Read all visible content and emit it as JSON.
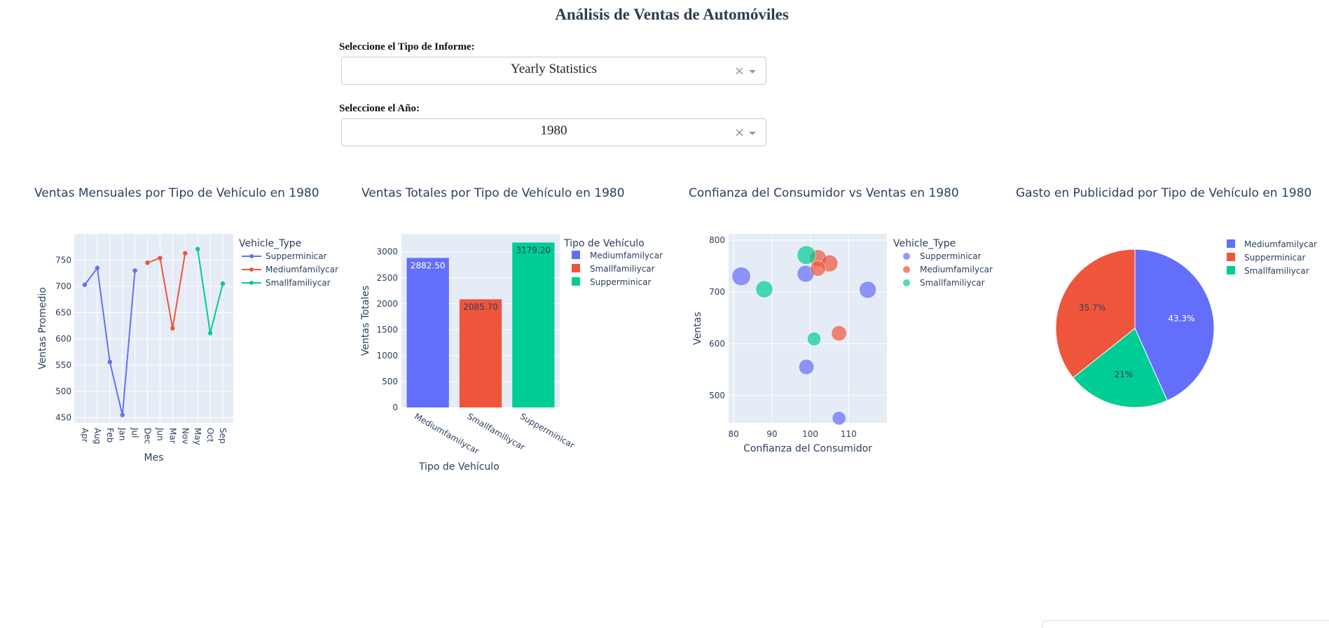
{
  "header": {
    "title": "Análisis de Ventas de Automóviles"
  },
  "controls": {
    "report_label": "Seleccione el Tipo de Informe:",
    "report_value": "Yearly Statistics",
    "year_label": "Seleccione el Año:",
    "year_value": "1980",
    "clear_glyph": "×"
  },
  "colors": {
    "blue": "#636efa",
    "red": "#ef553b",
    "green": "#00cc96",
    "plot_bg": "#e5ecf6"
  },
  "chart_data": [
    {
      "type": "line",
      "title": "Ventas Mensuales por Tipo de Vehículo en 1980",
      "xlabel": "Mes",
      "ylabel": "Ventas Promedio",
      "legend_title": "Vehicle_Type",
      "categories": [
        "Apr",
        "Aug",
        "Feb",
        "Jan",
        "Jul",
        "Dec",
        "Jun",
        "Mar",
        "Nov",
        "May",
        "Oct",
        "Sep"
      ],
      "yticks": [
        450,
        500,
        550,
        600,
        650,
        700,
        750
      ],
      "ylim": [
        440,
        800
      ],
      "series": [
        {
          "name": "Supperminicar",
          "color": "#636efa",
          "x": [
            "Apr",
            "Aug",
            "Feb",
            "Jan",
            "Jul"
          ],
          "y": [
            703,
            735,
            556,
            455,
            730
          ]
        },
        {
          "name": "Mediumfamilycar",
          "color": "#ef553b",
          "x": [
            "Dec",
            "Jun",
            "Mar",
            "Nov"
          ],
          "y": [
            745,
            754,
            620,
            763
          ]
        },
        {
          "name": "Smallfamiliycar",
          "color": "#00cc96",
          "x": [
            "May",
            "Oct",
            "Sep"
          ],
          "y": [
            771,
            611,
            705
          ]
        }
      ]
    },
    {
      "type": "bar",
      "title": "Ventas Totales por Tipo de Vehículo en 1980",
      "xlabel": "Tipo de Vehículo",
      "ylabel": "Ventas Totales",
      "legend_title": "Tipo de Vehículo",
      "categories": [
        "Mediumfamilycar",
        "Smallfamiliycar",
        "Supperminicar"
      ],
      "values": [
        2882.5,
        2085.7,
        3179.2
      ],
      "value_labels": [
        "2882.50",
        "2085.70",
        "3179.20"
      ],
      "colors": [
        "#636efa",
        "#ef553b",
        "#00cc96"
      ],
      "yticks": [
        0,
        500,
        1000,
        1500,
        2000,
        2500,
        3000
      ],
      "ylim": [
        0,
        3347
      ]
    },
    {
      "type": "scatter",
      "title": "Confianza del Consumidor vs Ventas en 1980",
      "xlabel": "Confianza del Consumidor",
      "ylabel": "Ventas",
      "legend_title": "Vehicle_Type",
      "xticks": [
        80,
        90,
        100,
        110
      ],
      "yticks": [
        500,
        600,
        700,
        800
      ],
      "xlim": [
        78.7,
        120
      ],
      "ylim": [
        447,
        812
      ],
      "series": [
        {
          "name": "Supperminicar",
          "color": "#636efa",
          "points": [
            [
              82,
              730,
              11
            ],
            [
              98.8,
              735,
              10
            ],
            [
              115,
              704,
              10
            ],
            [
              99,
              555,
              9
            ],
            [
              107.5,
              456,
              8
            ]
          ]
        },
        {
          "name": "Mediumfamilycar",
          "color": "#ef553b",
          "points": [
            [
              102,
              765,
              10
            ],
            [
              105,
              755,
              10
            ],
            [
              102,
              745,
              9
            ],
            [
              107.5,
              620,
              9
            ]
          ]
        },
        {
          "name": "Smallfamiliycar",
          "color": "#00cc96",
          "points": [
            [
              99,
              771,
              11
            ],
            [
              88,
              705,
              10
            ],
            [
              101,
              609,
              8
            ]
          ]
        }
      ]
    },
    {
      "type": "pie",
      "title": "Gasto en Publicidad por Tipo de Vehículo en 1980",
      "labels": [
        "Mediumfamilycar",
        "Supperminicar",
        "Smallfamiliycar"
      ],
      "values": [
        43.3,
        35.7,
        21
      ],
      "value_labels": [
        "43.3%",
        "35.7%",
        "21%"
      ],
      "colors": [
        "#636efa",
        "#ef553b",
        "#00cc96"
      ],
      "slice_order": [
        "Mediumfamilycar",
        "Smallfamiliycar",
        "Supperminicar"
      ]
    }
  ]
}
